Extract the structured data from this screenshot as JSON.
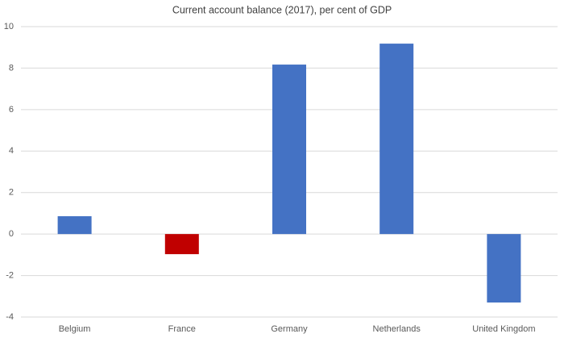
{
  "chart_data": {
    "type": "bar",
    "title": "Current account balance (2017), per cent of GDP",
    "categories": [
      "Belgium",
      "France",
      "Germany",
      "Netherlands",
      "United Kingdom"
    ],
    "values": [
      0.86,
      -0.97,
      8.17,
      9.18,
      -3.3
    ],
    "colors": [
      "#4472c4",
      "#c00000",
      "#4472c4",
      "#4472c4",
      "#4472c4"
    ],
    "ylim": [
      -4,
      10
    ],
    "yticks": [
      -4,
      -2,
      0,
      2,
      4,
      6,
      8,
      10
    ],
    "grid": true
  }
}
